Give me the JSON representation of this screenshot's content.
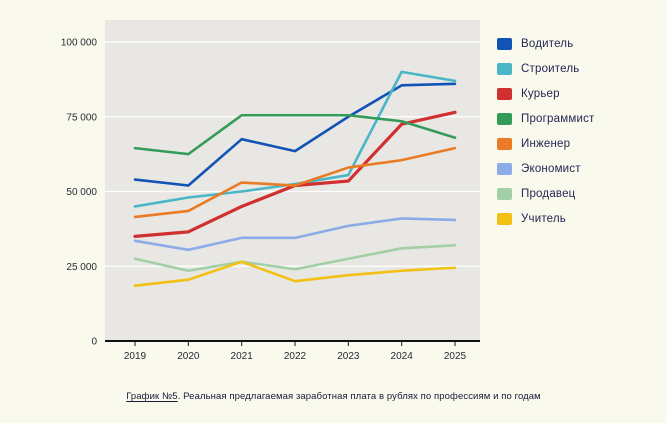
{
  "page": {
    "background": "#FAF9EE"
  },
  "caption": {
    "prefix": "График №5",
    "text": ". Реальная предлагаемая заработная плата в рублях по профессиям и по годам"
  },
  "chart_data": {
    "type": "line",
    "x": [
      "2019",
      "2020",
      "2021",
      "2022",
      "2023",
      "2024",
      "2025"
    ],
    "series": [
      {
        "name": "Водитель",
        "color": "#1353B5",
        "values": [
          54000,
          52000,
          67500,
          63500,
          75000,
          85500,
          86000
        ]
      },
      {
        "name": "Строитель",
        "color": "#4AB6C7",
        "values": [
          45000,
          48000,
          50000,
          52500,
          55500,
          90000,
          87000
        ]
      },
      {
        "name": "Курьер",
        "color": "#D03030",
        "width": 3.2,
        "values": [
          35000,
          36500,
          45000,
          52000,
          53500,
          72500,
          76500
        ]
      },
      {
        "name": "Программист",
        "color": "#339B58",
        "values": [
          64500,
          62500,
          75500,
          75500,
          75500,
          73500,
          68000
        ]
      },
      {
        "name": "Инженер",
        "color": "#EA7B25",
        "values": [
          41500,
          43500,
          53000,
          52000,
          58000,
          60500,
          64500
        ]
      },
      {
        "name": "Экономист",
        "color": "#8CACE8",
        "values": [
          33500,
          30500,
          34500,
          34500,
          38500,
          41000,
          40500
        ]
      },
      {
        "name": "Продавец",
        "color": "#A3CFA6",
        "values": [
          27500,
          23500,
          26500,
          24000,
          27500,
          31000,
          32000
        ]
      },
      {
        "name": "Учитель",
        "color": "#F2C114",
        "values": [
          18500,
          20500,
          26500,
          20000,
          22000,
          23500,
          24500
        ]
      }
    ],
    "title": "",
    "xlabel": "",
    "ylabel": "",
    "ylim": [
      0,
      100000
    ],
    "yticks": [
      0,
      25000,
      50000,
      75000,
      100000
    ],
    "ytick_labels": [
      "0",
      "25 000",
      "50 000",
      "75 000",
      "100 000"
    ],
    "grid": true,
    "legend_position": "right",
    "plot_bg": "#E8E7E3",
    "grid_color": "#FFFFFF",
    "axis_color": "#121212",
    "tick_label_color": "#2A2A33"
  }
}
